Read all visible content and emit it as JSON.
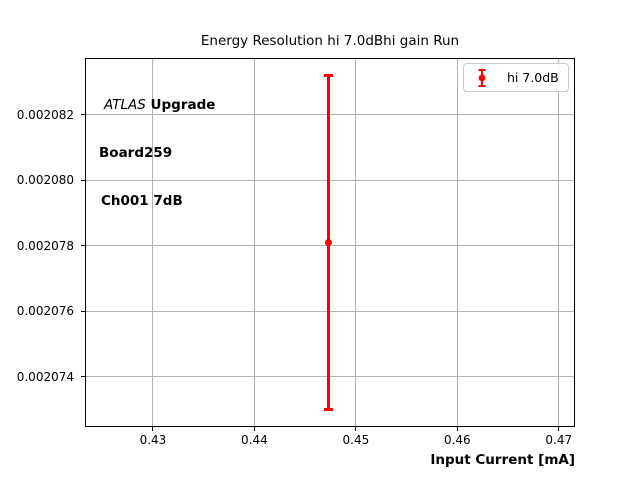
{
  "chart_data": {
    "type": "scatter",
    "subtype": "errorbar",
    "title": "Energy Resolution hi 7.0dBhi gain Run",
    "xlabel": "Input Current [mA]",
    "ylabel": "",
    "xlim": [
      0.4234,
      0.4715
    ],
    "ylim": [
      0.0020725,
      0.0020837
    ],
    "grid": true,
    "xticks": [
      0.43,
      0.44,
      0.45,
      0.46,
      0.47
    ],
    "xtick_labels": [
      "0.43",
      "0.44",
      "0.45",
      "0.46",
      "0.47"
    ],
    "yticks": [
      0.002074,
      0.002076,
      0.002078,
      0.00208,
      0.002082
    ],
    "ytick_labels": [
      "0.002074",
      "0.002076",
      "0.002078",
      "0.002080",
      "0.002082"
    ],
    "series": [
      {
        "name": "hi 7.0dB",
        "color": "#ff0000",
        "marker": "circle",
        "points": [
          {
            "x": 0.4473,
            "y": 0.0020781,
            "yerr": 5.1e-06
          }
        ]
      }
    ],
    "legend": {
      "position": "upper right",
      "entries": [
        "hi 7.0dB"
      ]
    },
    "annotation": {
      "line1_italic": "ATLAS",
      "line1_bold": "Upgrade",
      "line2": "Board259",
      "line3": "Ch001 7dB"
    }
  },
  "colors": {
    "series": "#ff0000",
    "grid": "#b0b0b0",
    "frame": "#000000",
    "legend_border": "#cccccc",
    "text": "#000000",
    "background": "#ffffff"
  }
}
